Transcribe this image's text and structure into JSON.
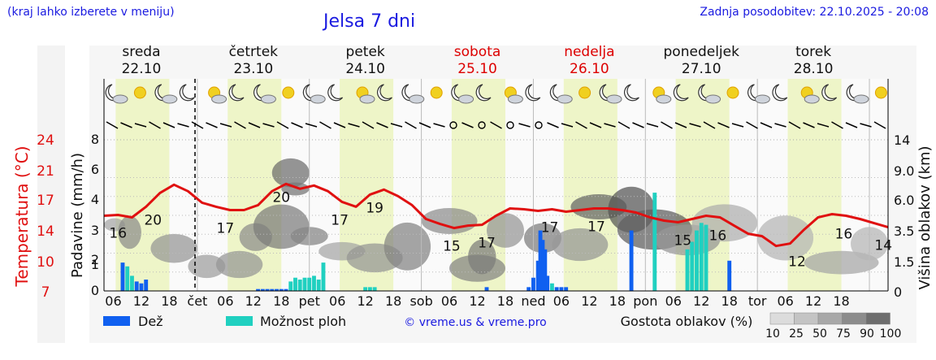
{
  "header": {
    "left_note": "(kraj lahko izberete v meniju)",
    "title": "Jelsa 7 dni",
    "updated": "Zadnja posodobitev: 22.10.2025 - 20:08"
  },
  "days": [
    {
      "name": "sreda",
      "date": "22.10",
      "weekend": false,
      "short": ""
    },
    {
      "name": "četrtek",
      "date": "23.10",
      "weekend": false,
      "short": "čet"
    },
    {
      "name": "petek",
      "date": "24.10",
      "weekend": false,
      "short": "pet"
    },
    {
      "name": "sobota",
      "date": "25.10",
      "weekend": true,
      "short": "sob"
    },
    {
      "name": "nedelja",
      "date": "26.10",
      "weekend": true,
      "short": "ned"
    },
    {
      "name": "ponedeljek",
      "date": "27.10",
      "weekend": false,
      "short": "pon"
    },
    {
      "name": "torek",
      "date": "28.10",
      "weekend": false,
      "short": "tor"
    }
  ],
  "legend": {
    "rain": "Dež",
    "showers": "Možnost ploh",
    "credit": "© vreme.us & vreme.pro",
    "cloud_density_label": "Gostota oblakov (%)",
    "cloud_density_steps": [
      "10",
      "25",
      "50",
      "75",
      "90",
      "100"
    ]
  },
  "colors": {
    "temperature": "#e01010",
    "rain": "#1060f0",
    "showers": "#20d0c0",
    "daylight": "#eef5c8",
    "weekend_text": "#dd0000",
    "link_blue": "#1a1ae0"
  },
  "chart_data": {
    "type": "line",
    "title": "Jelsa 7 dni",
    "ylabel_left_temp": "Temperatura (°C)",
    "ylabel_left_precip": "Padavine (mm/h)",
    "ylabel_right": "Višina oblakov (km)",
    "temp_ticks": [
      "24",
      "21",
      "17",
      "14",
      "10",
      "7"
    ],
    "precip_ticks": [
      "8",
      "6",
      "4",
      "3",
      "2",
      "1",
      "0"
    ],
    "cloud_height_ticks": [
      "14",
      "9.0",
      "6.0",
      "3.5",
      "1.5",
      "0"
    ],
    "hour_ticks": [
      "06",
      "12",
      "18"
    ],
    "temperature": {
      "name": "Temperatura",
      "x_hours": [
        0,
        3,
        6,
        9,
        12,
        15,
        18,
        21,
        24,
        27,
        30,
        33,
        36,
        39,
        42,
        45,
        48,
        51,
        54,
        57,
        60,
        63,
        66,
        69,
        72,
        75,
        78,
        81,
        84,
        87,
        90,
        93,
        96,
        99,
        102,
        105,
        108,
        111,
        114,
        117,
        120,
        123,
        126,
        129,
        132,
        135,
        138,
        141,
        144,
        147,
        150,
        153,
        156,
        159,
        162,
        165,
        168
      ],
      "values": [
        16.2,
        16.3,
        16.0,
        17.3,
        19.0,
        20.0,
        19.2,
        17.8,
        17.3,
        16.9,
        16.9,
        17.5,
        19.2,
        20.1,
        19.5,
        19.9,
        19.2,
        17.9,
        17.3,
        18.8,
        19.4,
        18.6,
        17.5,
        15.8,
        15.2,
        14.7,
        15.0,
        15.1,
        16.2,
        17.1,
        17.0,
        16.8,
        17.0,
        16.7,
        16.9,
        17.1,
        17.1,
        16.9,
        16.6,
        16.0,
        15.6,
        15.4,
        15.8,
        16.2,
        16.0,
        15.0,
        14.0,
        13.7,
        12.5,
        12.8,
        14.5,
        16.0,
        16.4,
        16.2,
        15.8,
        15.3,
        14.8
      ],
      "labels": [
        {
          "x": 3,
          "value": "16"
        },
        {
          "x": 10.5,
          "value": "20"
        },
        {
          "x": 26,
          "value": "17"
        },
        {
          "x": 38,
          "value": "20"
        },
        {
          "x": 50.5,
          "value": "17"
        },
        {
          "x": 58,
          "value": "19"
        },
        {
          "x": 74.5,
          "value": "15"
        },
        {
          "x": 82,
          "value": "17"
        },
        {
          "x": 95.5,
          "value": "17"
        },
        {
          "x": 105.5,
          "value": "17"
        },
        {
          "x": 124,
          "value": "15"
        },
        {
          "x": 131.5,
          "value": "16"
        },
        {
          "x": 148.5,
          "value": "12"
        },
        {
          "x": 158.5,
          "value": "16"
        },
        {
          "x": 167,
          "value": "14"
        }
      ]
    },
    "rain": {
      "name": "Dež",
      "x_hours": [
        0,
        3,
        4,
        5,
        29,
        30,
        31,
        32,
        33,
        34,
        35,
        78,
        87,
        88,
        89,
        89.5,
        90,
        90.5,
        91,
        93,
        94,
        95,
        109,
        130
      ],
      "values": [
        1.5,
        0.5,
        0.4,
        0.6,
        0.1,
        0.1,
        0.1,
        0.1,
        0.1,
        0.1,
        0.1,
        0.2,
        0.2,
        0.7,
        1.6,
        3.2,
        2.7,
        2.2,
        0.8,
        0.2,
        0.2,
        0.2,
        3.2,
        1.6
      ]
    },
    "showers": {
      "name": "Možnost ploh",
      "x_hours": [
        1,
        2,
        36,
        37,
        38,
        39,
        40,
        41,
        42,
        43,
        52,
        53,
        54,
        92,
        114,
        121,
        122,
        123,
        124,
        125
      ],
      "values": [
        1.3,
        0.8,
        0.5,
        0.7,
        0.6,
        0.7,
        0.7,
        0.8,
        0.6,
        1.5,
        0.2,
        0.2,
        0.2,
        0.4,
        5.2,
        2.2,
        2.6,
        3.2,
        3.6,
        3.5
      ]
    },
    "xlim_hours": [
      0,
      168
    ],
    "temp_ylim": [
      7,
      25.5
    ],
    "precip_ylim": [
      0,
      8
    ],
    "grid": true,
    "legend_position": "bottom"
  }
}
